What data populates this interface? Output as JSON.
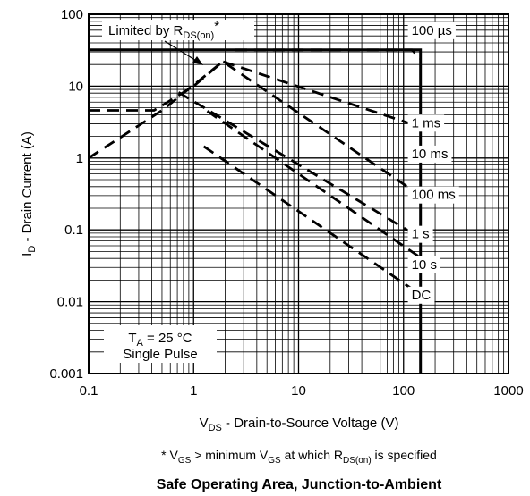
{
  "chart_data": {
    "type": "line",
    "title": "Safe Operating Area, Junction-to-Ambient",
    "footnote": {
      "prefix": "* V",
      "sub1": "GS",
      "mid": " > minimum V",
      "sub2": "GS",
      "mid2": " at which R",
      "sub3": "DS(on)",
      "suffix": " is specified"
    },
    "xlabel": {
      "main": "V",
      "sub": "DS",
      "rest": " - Drain-to-Source Voltage (V)"
    },
    "ylabel": {
      "main": "I",
      "sub": "D",
      "rest": " - Drain Current (A)"
    },
    "x_scale": "log",
    "y_scale": "log",
    "xlim": [
      0.1,
      1000
    ],
    "ylim": [
      0.001,
      100
    ],
    "x_ticks": [
      {
        "value": 0.1,
        "label": "0.1"
      },
      {
        "value": 1,
        "label": "1"
      },
      {
        "value": 10,
        "label": "10"
      },
      {
        "value": 100,
        "label": "100"
      },
      {
        "value": 1000,
        "label": "1000"
      }
    ],
    "y_ticks": [
      {
        "value": 0.001,
        "label": "0.001"
      },
      {
        "value": 0.01,
        "label": "0.01"
      },
      {
        "value": 0.1,
        "label": "0.1"
      },
      {
        "value": 1,
        "label": "1"
      },
      {
        "value": 10,
        "label": "10"
      },
      {
        "value": 100,
        "label": "100"
      }
    ],
    "grid": true,
    "limit_annotation": {
      "main": "Limited by R",
      "sub": "DS(on)",
      "suffix": "*"
    },
    "conditions": {
      "line1_main": "T",
      "line1_sub": "A",
      "line1_rest": " = 25 °C",
      "line2": "Single Pulse"
    },
    "series": [
      {
        "name": "100 µs",
        "style": "solid",
        "label_at": [
          110,
          60
        ],
        "points": [
          [
            0.1,
            32
          ],
          [
            145,
            32
          ],
          [
            145,
            0.001
          ]
        ]
      },
      {
        "name": "1 ms",
        "style": "dashed",
        "label_at": [
          110,
          3.1
        ],
        "points": [
          [
            2.5,
            32
          ],
          [
            120,
            32
          ],
          [
            145,
            24
          ]
        ]
      },
      {
        "name": "10 ms",
        "style": "dashed",
        "label_at": [
          110,
          1.15
        ],
        "points": [
          [
            0.1,
            4.6
          ],
          [
            0.42,
            4.6
          ],
          [
            1.0,
            10
          ],
          [
            1.9,
            22
          ],
          [
            145,
            2.7
          ]
        ]
      },
      {
        "name": "100 ms",
        "style": "dashed",
        "label_at": [
          110,
          0.31
        ],
        "points": [
          [
            0.1,
            1.0
          ],
          [
            0.5,
            4.6
          ],
          [
            1.9,
            22
          ],
          [
            145,
            0.3
          ]
        ]
      },
      {
        "name": "1 s",
        "style": "dashed",
        "label_at": [
          110,
          0.088
        ],
        "points": [
          [
            0.72,
            8.2
          ],
          [
            145,
            0.077
          ]
        ]
      },
      {
        "name": "10 s",
        "style": "dashed",
        "label_at": [
          110,
          0.033
        ],
        "points": [
          [
            1.35,
            4.5
          ],
          [
            145,
            0.041
          ]
        ]
      },
      {
        "name": "DC",
        "style": "dashed",
        "label_at": [
          110,
          0.0125
        ],
        "points": [
          [
            1.25,
            1.45
          ],
          [
            145,
            0.0125
          ]
        ]
      }
    ]
  }
}
